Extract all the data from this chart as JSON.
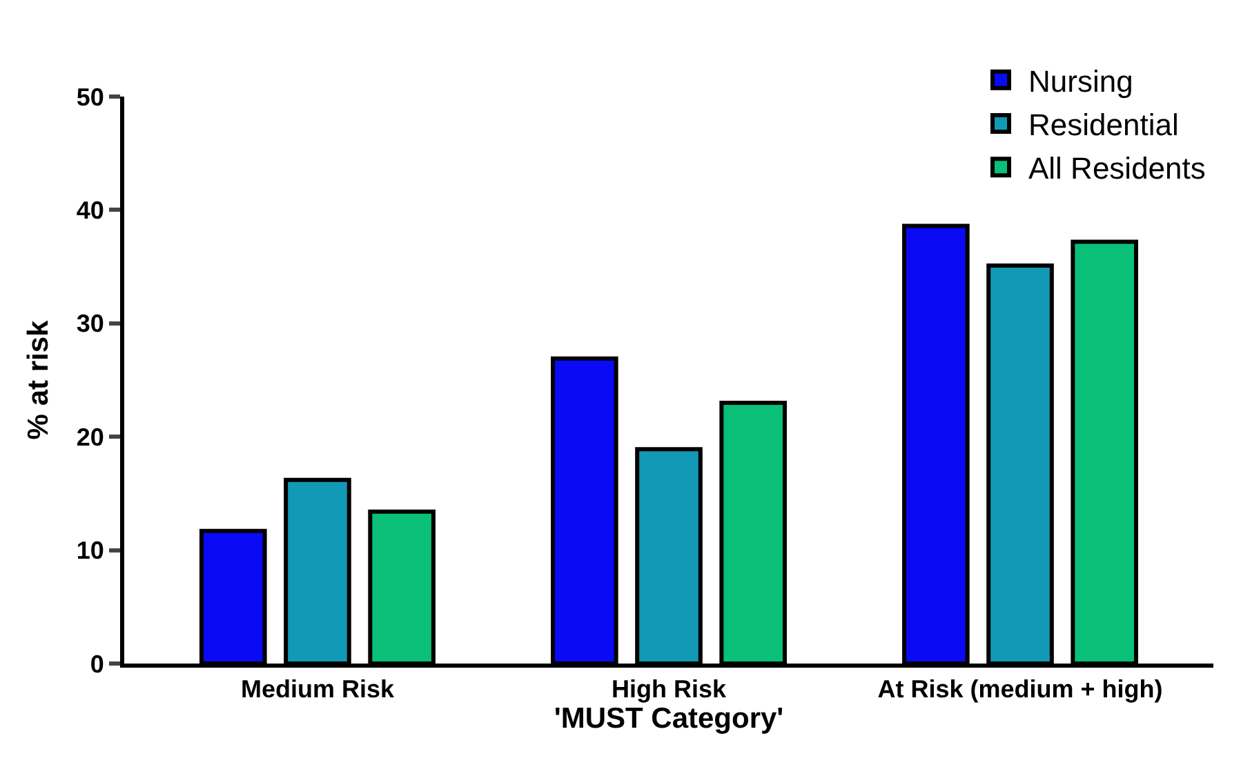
{
  "chart_data": {
    "type": "bar",
    "xlabel": "'MUST Category'",
    "ylabel": "% at risk",
    "categories": [
      "Medium Risk",
      "High Risk",
      "At Risk (medium + high)"
    ],
    "series": [
      {
        "name": "Nursing",
        "color": "#0a0af5",
        "values": [
          11.7,
          26.9,
          38.6
        ]
      },
      {
        "name": "Residential",
        "color": "#1199b5",
        "values": [
          16.2,
          18.9,
          35.1
        ]
      },
      {
        "name": "All Residents",
        "color": "#0abf78",
        "values": [
          13.4,
          23.0,
          37.2
        ]
      }
    ],
    "ylim": [
      0,
      50
    ],
    "yticks": [
      0,
      10,
      20,
      30,
      40,
      50
    ],
    "legend": "top right"
  }
}
